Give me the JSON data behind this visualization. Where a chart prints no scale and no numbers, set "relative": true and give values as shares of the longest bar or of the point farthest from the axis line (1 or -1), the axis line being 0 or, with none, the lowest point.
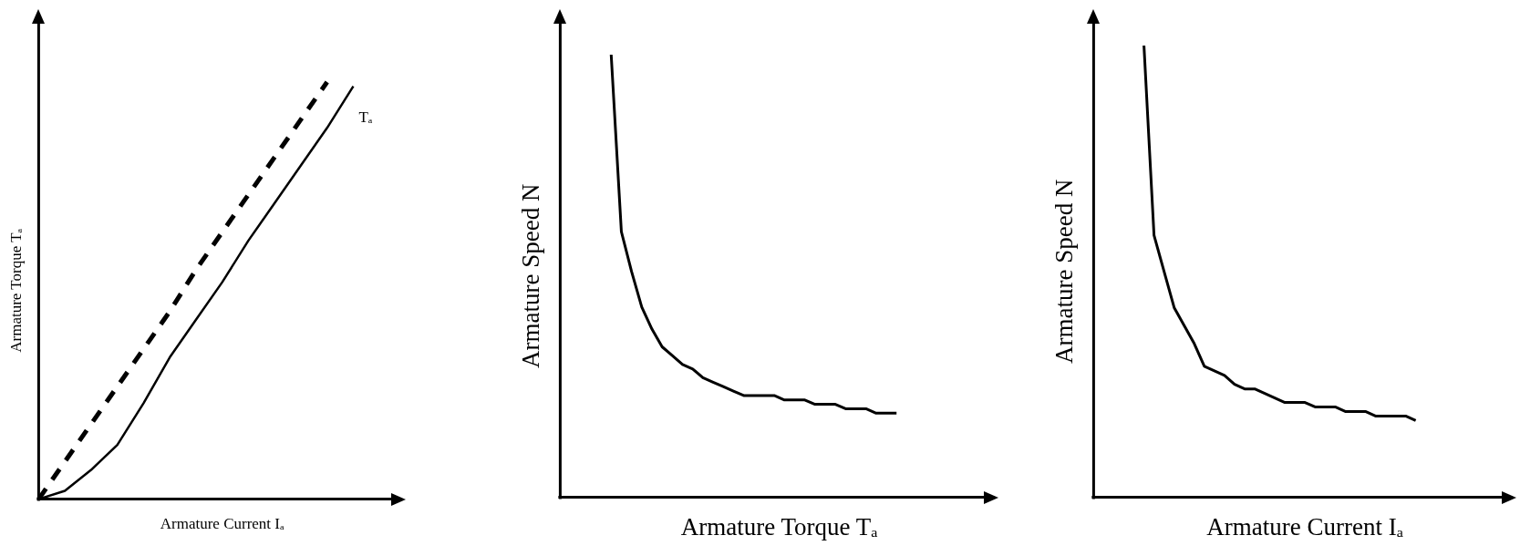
{
  "chart_data": [
    {
      "type": "line",
      "relative": true,
      "marker": "none",
      "xlabel": "Armature Current Iₐ",
      "ylabel": "Armature Torque Tₐ",
      "categories": [
        null,
        null,
        null,
        null,
        null,
        null,
        null,
        null,
        null,
        null,
        null,
        null,
        null,
        null,
        null
      ],
      "series": [
        {
          "color": "#000000",
          "line_style": "dashed",
          "values": [
            0,
            0.09,
            0.18,
            0.27,
            0.36,
            0.45,
            0.55,
            0.64,
            0.73,
            0.82,
            0.91,
            1,
            null,
            null,
            null
          ]
        },
        {
          "name": "Tₐ",
          "color": "#000000",
          "line_style": "solid",
          "values": [
            0,
            0.02,
            0.07,
            0.13,
            0.23,
            0.34,
            0.43,
            0.52,
            0.62,
            0.71,
            0.8,
            0.89,
            0.99,
            null,
            null
          ]
        }
      ]
    },
    {
      "type": "line",
      "relative": true,
      "marker": "none",
      "xlabel": "Armature Torque Tₐ",
      "ylabel": "Armature Speed N",
      "categories": [
        null,
        null,
        null,
        null,
        null,
        null,
        null,
        null,
        null,
        null,
        null,
        null,
        null,
        null,
        null,
        null,
        null,
        null,
        null,
        null,
        null,
        null,
        null,
        null,
        null,
        null,
        null,
        null,
        null,
        null,
        null,
        null,
        null,
        null,
        null,
        null,
        null,
        null,
        null,
        null,
        null,
        null,
        null,
        null
      ],
      "series": [
        {
          "color": "#000000",
          "line_style": "solid",
          "values": [
            null,
            null,
            null,
            null,
            null,
            1,
            0.6,
            0.51,
            0.43,
            0.38,
            0.34,
            0.32,
            0.3,
            0.29,
            0.27,
            0.26,
            0.25,
            0.24,
            0.23,
            0.23,
            0.23,
            0.23,
            0.22,
            0.22,
            0.22,
            0.21,
            0.21,
            0.21,
            0.2,
            0.2,
            0.2,
            0.19,
            0.19,
            0.19,
            null,
            null,
            null,
            null,
            null,
            null,
            null,
            null,
            null,
            null
          ]
        }
      ]
    },
    {
      "type": "line",
      "relative": true,
      "marker": "none",
      "xlabel": "Armature Current Iₐ",
      "ylabel": "Armature Speed N",
      "categories": [
        null,
        null,
        null,
        null,
        null,
        null,
        null,
        null,
        null,
        null,
        null,
        null,
        null,
        null,
        null,
        null,
        null,
        null,
        null,
        null,
        null,
        null,
        null,
        null,
        null,
        null,
        null,
        null,
        null,
        null,
        null,
        null,
        null,
        null,
        null,
        null,
        null,
        null,
        null,
        null,
        null,
        null,
        null
      ],
      "series": [
        {
          "color": "#000000",
          "line_style": "solid",
          "values": [
            null,
            null,
            null,
            null,
            null,
            1,
            0.58,
            0.5,
            0.42,
            0.38,
            0.34,
            0.29,
            0.28,
            0.27,
            0.25,
            0.24,
            0.24,
            0.23,
            0.22,
            0.21,
            0.21,
            0.21,
            0.2,
            0.2,
            0.2,
            0.19,
            0.19,
            0.19,
            0.18,
            0.18,
            0.18,
            0.18,
            0.17,
            null,
            null,
            null,
            null,
            null,
            null,
            null,
            null,
            null,
            null
          ]
        }
      ]
    }
  ]
}
